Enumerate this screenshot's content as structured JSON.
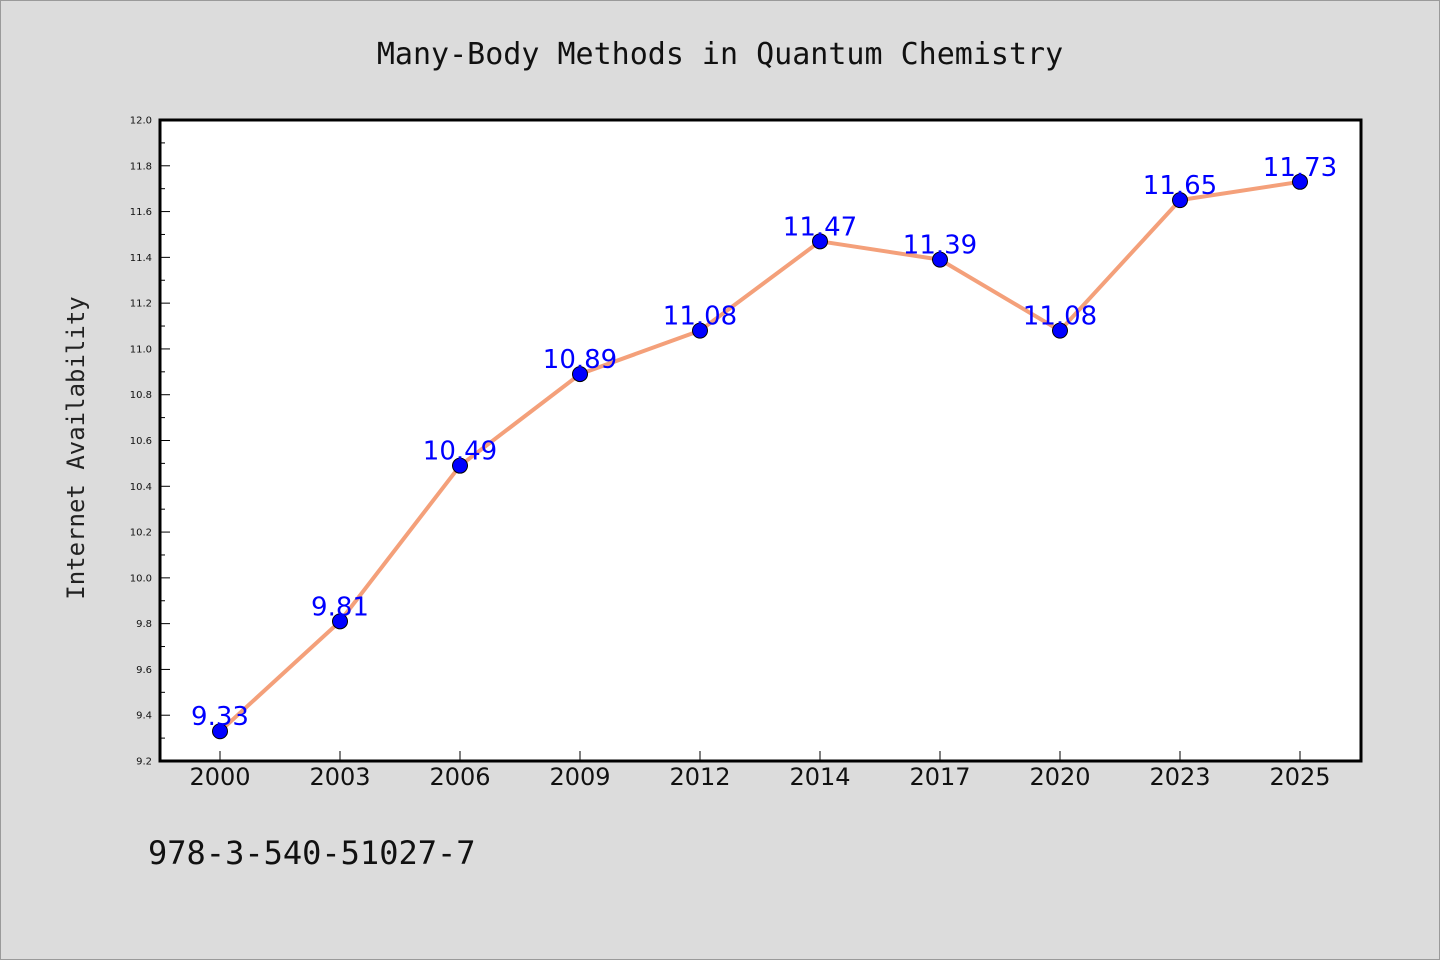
{
  "chart_data": {
    "type": "line",
    "title": "Many-Body Methods in Quantum Chemistry",
    "xlabel": "",
    "ylabel": "Internet Availability",
    "categories": [
      "2000",
      "2003",
      "2006",
      "2009",
      "2012",
      "2014",
      "2017",
      "2020",
      "2023",
      "2025"
    ],
    "series": [
      {
        "values": [
          9.33,
          9.81,
          10.49,
          10.89,
          11.08,
          11.47,
          11.39,
          11.08,
          11.65,
          11.73
        ],
        "line_color": "#f4a07a",
        "marker_color": "#0000ff"
      }
    ],
    "data_labels": [
      "9.33",
      "9.81",
      "10.49",
      "10.89",
      "11.08",
      "11.47",
      "11.39",
      "11.08",
      "11.65",
      "11.73"
    ],
    "ylim": [
      9.2,
      12.0
    ],
    "yticks": [
      "9.2",
      "9.4",
      "9.6",
      "9.8",
      "10.0",
      "10.2",
      "10.4",
      "10.6",
      "10.8",
      "11.0",
      "11.2",
      "11.4",
      "11.6",
      "11.8",
      "12.0"
    ],
    "grid": false,
    "legend": "none",
    "footnote": "978-3-540-51027-7"
  }
}
